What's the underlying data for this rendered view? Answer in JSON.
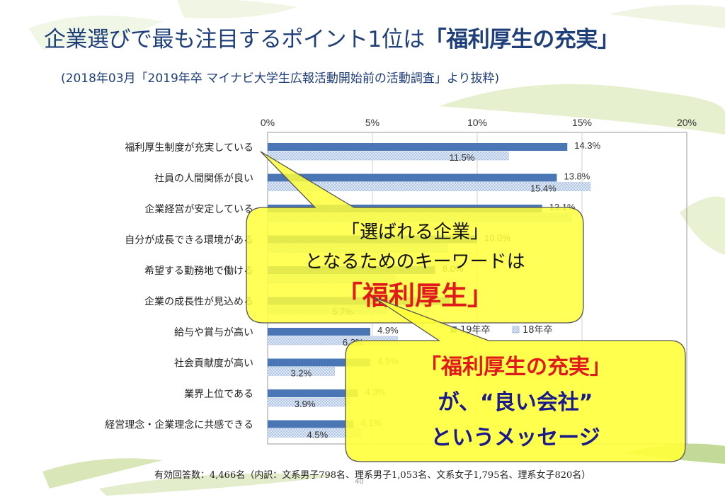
{
  "slide": {
    "title_prefix": "企業選びで最も注目するポイント1位は",
    "title_highlight": "「福利厚生の充実」",
    "subtitle": "(2018年03月「2019年卒 マイナビ大学生広報活動開始前の活動調査」より抜粋)",
    "footnote": "有効回答数：4,466名（内訳：文系男子798名、理系男子1,053名、文系女子1,795名、理系女子820名）",
    "page_number": "40",
    "callout1": {
      "line1": "「選ばれる企業」",
      "line2": "となるためのキーワードは",
      "line3": "「福利厚生」"
    },
    "callout2": {
      "line1": "「福利厚生の充実」",
      "line2": "が、“良い会社”",
      "line3": "というメッセージ"
    }
  },
  "colors": {
    "series19": "#4a76b5",
    "series18": "#c9d9ee",
    "title": "#1f3f7a",
    "callout_fill": "#ffff33",
    "callout_red": "#e0191c",
    "callout_blue": "#1a1a8c"
  },
  "chart_data": {
    "type": "bar",
    "orientation": "horizontal",
    "categories": [
      "福利厚生制度が充実している",
      "社員の人間関係が良い",
      "企業経営が安定している",
      "自分が成長できる環境がある",
      "希望する勤務地で働ける",
      "企業の成長性が見込める",
      "給与や賞与が高い",
      "社会貢献度が高い",
      "業界上位である",
      "経営理念・企業理念に共感できる"
    ],
    "series": [
      {
        "name": "19年卒",
        "values": [
          14.3,
          13.8,
          13.1,
          10.0,
          8.0,
          8.7,
          4.9,
          4.9,
          4.3,
          4.1
        ],
        "labels": [
          "14.3%",
          "13.8%",
          "13.1%",
          "10.0%",
          "8.0%",
          "",
          "4.9%",
          "4.9%",
          "4.3%",
          "4.1%"
        ]
      },
      {
        "name": "18年卒",
        "values": [
          11.5,
          15.4,
          14.5,
          8.6,
          6.1,
          5.7,
          6.2,
          3.2,
          3.9,
          4.5
        ],
        "labels": [
          "11.5%",
          "15.4%",
          "",
          "",
          "",
          "5.7%",
          "6.2%",
          "3.2%",
          "3.9%",
          "4.5%"
        ]
      }
    ],
    "xticks": [
      "0%",
      "5%",
      "10%",
      "15%",
      "20%"
    ],
    "xlim": [
      0,
      20
    ],
    "legend": [
      "19年卒",
      "18年卒"
    ],
    "legend_position": "middle-right",
    "grid": true
  }
}
